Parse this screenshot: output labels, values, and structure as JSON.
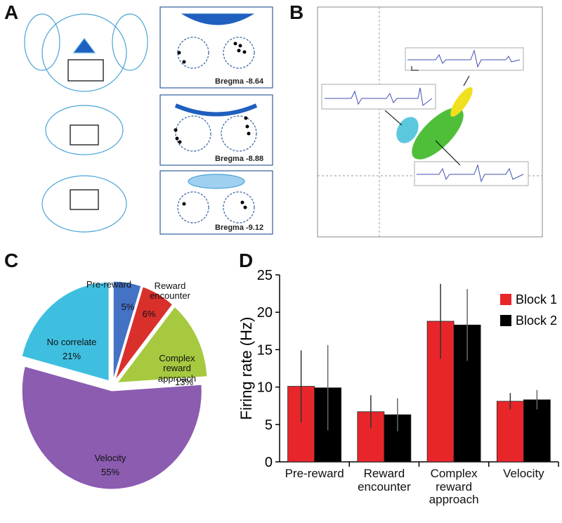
{
  "panels": {
    "a": {
      "label": "A",
      "sections": [
        "Bregma -8.64",
        "Bregma -8.88",
        "Bregma -9.12"
      ]
    },
    "b": {
      "label": "B"
    },
    "c": {
      "label": "C"
    },
    "d": {
      "label": "D"
    }
  },
  "chart_data": [
    {
      "type": "pie",
      "categories": [
        "Pre-reward",
        "Reward encounter",
        "Complex reward approach",
        "Velocity",
        "No correlate"
      ],
      "values": [
        5,
        6,
        13,
        55,
        21
      ],
      "value_labels": [
        "5%",
        "6%",
        "13%",
        "55%",
        "21%"
      ],
      "colors": [
        "#4472c4",
        "#d9302c",
        "#a6c940",
        "#8b5cb0",
        "#3fbfe0"
      ]
    },
    {
      "type": "bar",
      "categories": [
        "Pre-reward",
        "Reward encounter",
        "Complex reward approach",
        "Velocity"
      ],
      "ylabel": "Firing rate (Hz)",
      "ylim": [
        0,
        25
      ],
      "yticks": [
        0,
        5,
        10,
        15,
        20,
        25
      ],
      "legend": "upper right",
      "series": [
        {
          "name": "Block 1",
          "color": "#e8262a",
          "values": [
            10.1,
            6.7,
            18.8,
            8.1
          ],
          "errors": [
            4.8,
            2.2,
            5.0,
            1.1
          ]
        },
        {
          "name": "Block 2",
          "color": "#000000",
          "values": [
            9.9,
            6.3,
            18.3,
            8.3
          ],
          "errors": [
            5.7,
            2.2,
            4.8,
            1.3
          ]
        }
      ]
    }
  ]
}
